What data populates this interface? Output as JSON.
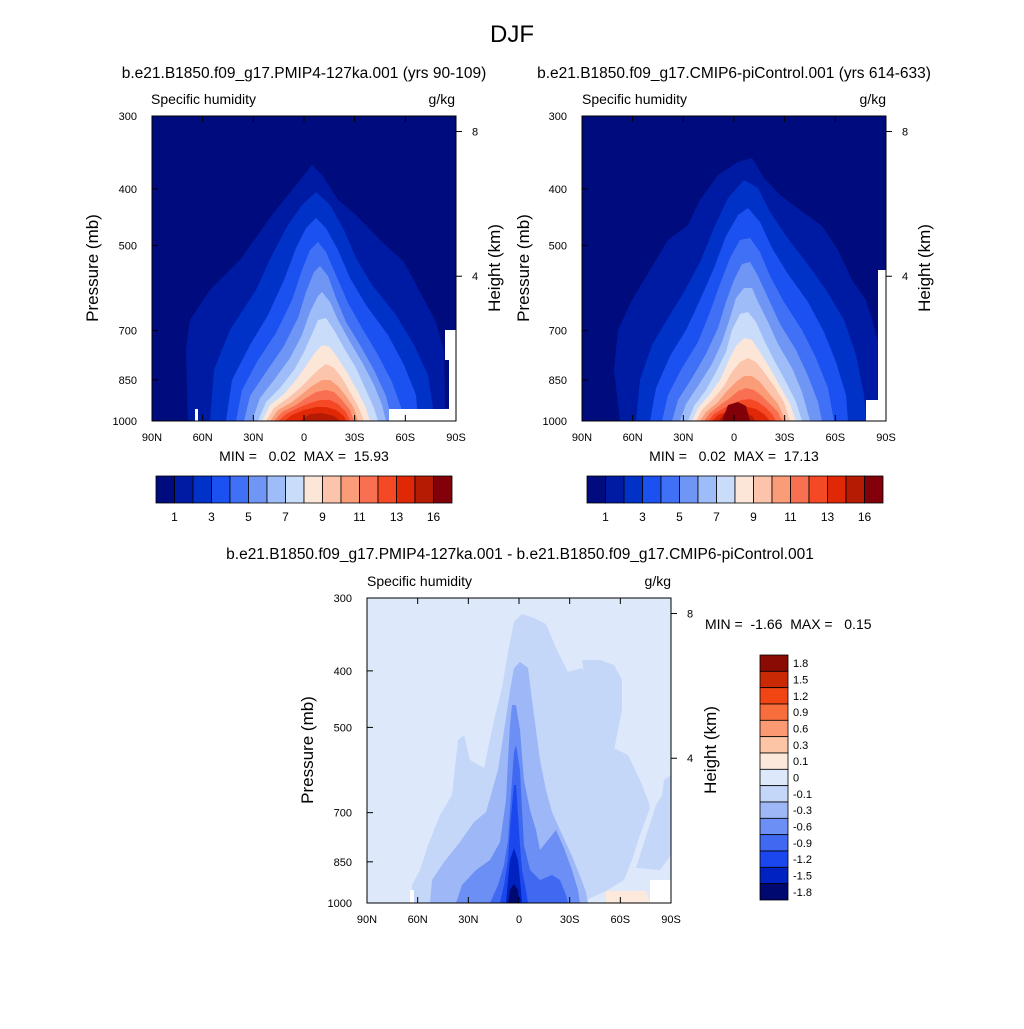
{
  "page_title": "DJF",
  "colors": {
    "seq": [
      "#000c7d",
      "#001ba3",
      "#0132c8",
      "#1b50f1",
      "#3f70f5",
      "#7096f5",
      "#9ebcf8",
      "#c9dcf9",
      "#fbe6d8",
      "#fdc4ac",
      "#fb9c78",
      "#f87051",
      "#f54825",
      "#e02807",
      "#b51a02",
      "#82000a"
    ],
    "diff": [
      "#00096f",
      "#0022c1",
      "#1a48ee",
      "#4069f2",
      "#6b8ff4",
      "#9eb8f7",
      "#c4d7f9",
      "#dde9fb",
      "#fde9dc",
      "#fcc5a5",
      "#fb9a72",
      "#f86d3c",
      "#f24514",
      "#c92a05",
      "#8a0a04"
    ]
  },
  "chart_data": [
    {
      "type": "heatmap",
      "title": "b.e21.B1850.f09_g17.PMIP4-127ka.001 (yrs 90-109)",
      "left_label": "Specific humidity",
      "right_label": "g/kg",
      "ylabel": "Pressure (mb)",
      "y2label": "Height (km)",
      "x_ticks": [
        "90N",
        "60N",
        "30N",
        "0",
        "30S",
        "60S",
        "90S"
      ],
      "y_ticks": [
        "300",
        "400",
        "500",
        "700",
        "850",
        "1000"
      ],
      "y2_ticks": [
        "8",
        "4"
      ],
      "min_max_text": "MIN =   0.02  MAX =  15.93",
      "colorbar_labels": [
        "1",
        "3",
        "5",
        "7",
        "9",
        "11",
        "13",
        "16"
      ],
      "units": "g/kg",
      "min": 0.02,
      "max": 15.93
    },
    {
      "type": "heatmap",
      "title": "b.e21.B1850.f09_g17.CMIP6-piControl.001 (yrs 614-633)",
      "left_label": "Specific humidity",
      "right_label": "g/kg",
      "ylabel": "Pressure (mb)",
      "y2label": "Height (km)",
      "x_ticks": [
        "90N",
        "60N",
        "30N",
        "0",
        "30S",
        "60S",
        "90S"
      ],
      "y_ticks": [
        "300",
        "400",
        "500",
        "700",
        "850",
        "1000"
      ],
      "y2_ticks": [
        "8",
        "4"
      ],
      "min_max_text": "MIN =   0.02  MAX =  17.13",
      "colorbar_labels": [
        "1",
        "3",
        "5",
        "7",
        "9",
        "11",
        "13",
        "16"
      ],
      "units": "g/kg",
      "min": 0.02,
      "max": 17.13
    },
    {
      "type": "heatmap",
      "title": "b.e21.B1850.f09_g17.PMIP4-127ka.001 - b.e21.B1850.f09_g17.CMIP6-piControl.001",
      "left_label": "Specific humidity",
      "right_label": "g/kg",
      "ylabel": "Pressure (mb)",
      "y2label": "Height (km)",
      "x_ticks": [
        "90N",
        "60N",
        "30N",
        "0",
        "30S",
        "60S",
        "90S"
      ],
      "y_ticks": [
        "300",
        "400",
        "500",
        "700",
        "850",
        "1000"
      ],
      "y2_ticks": [
        "8",
        "4"
      ],
      "min_max_text": "MIN =  -1.66  MAX =   0.15",
      "colorbar_labels": [
        "1.8",
        "1.5",
        "1.2",
        "0.9",
        "0.6",
        "0.3",
        "0.1",
        "0",
        "-0.1",
        "-0.3",
        "-0.6",
        "-0.9",
        "-1.2",
        "-1.5",
        "-1.8"
      ],
      "units": "g/kg",
      "min": -1.66,
      "max": 0.15
    }
  ]
}
